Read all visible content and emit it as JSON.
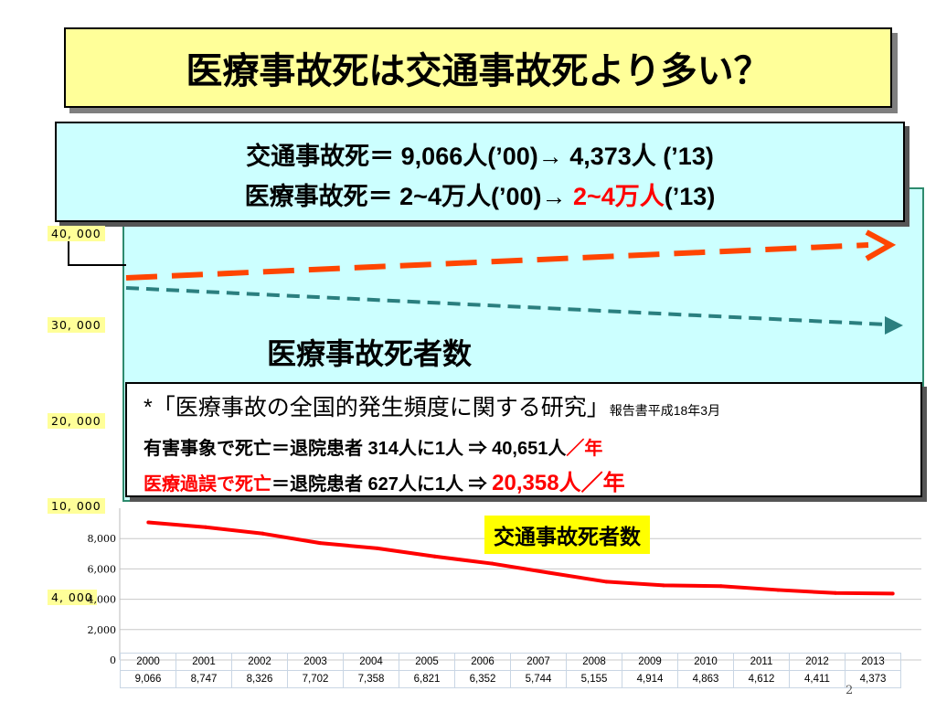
{
  "title": "医療事故死は交通事故死より多い？",
  "summary": {
    "line1": "交通事故死＝  9,066人(’00)→  4,373人 (’13)",
    "line2_prefix": "医療事故死＝ 2~4万人(’00)→ ",
    "line2_highlight": "2~4万人",
    "line2_suffix": "(’13)"
  },
  "y_labels": {
    "label_40000": "40, 000",
    "label_30000": "30, 000",
    "label_20000": "20, 000",
    "label_10000": "10, 000",
    "label_4000": "4, 000"
  },
  "medical_label": "医療事故死者数",
  "note": {
    "line1_main": "*「医療事故の全国的発生頻度に関する研究」",
    "line1_small": "報告書平成18年3月",
    "line2_main": "有害事象で死亡＝退院患者 314人に1人  ⇒  40,651人",
    "line2_red": "／年",
    "line3_red": "医療過誤で死亡",
    "line3_main": "＝退院患者 627人に1人  ⇒  ",
    "line3_value": "20,358人／年"
  },
  "traffic_label": "交通事故死者数",
  "page_number": "2",
  "colors": {
    "traffic_line": "#ff0000",
    "medical_2013_dash": "#ff4500",
    "medical_2000_dash": "#2a7f7f",
    "label_yellow": "#ffff99",
    "panel_cyan": "#ccffff"
  },
  "chart_data": {
    "type": "line",
    "x": [
      "2000",
      "2001",
      "2002",
      "2003",
      "2004",
      "2005",
      "2006",
      "2007",
      "2008",
      "2009",
      "2010",
      "2011",
      "2012",
      "2013"
    ],
    "series": [
      {
        "values": [
          9066,
          8747,
          8326,
          7702,
          7358,
          6821,
          6352,
          5744,
          5155,
          4914,
          4863,
          4612,
          4411,
          4373
        ]
      }
    ],
    "value_labels": [
      "9,066",
      "8,747",
      "8,326",
      "7,702",
      "7,358",
      "6,821",
      "6,352",
      "5,744",
      "5,155",
      "4,914",
      "4,863",
      "4,612",
      "4,411",
      "4,373"
    ],
    "y_ticks": [
      "0",
      "2,000",
      "4,000",
      "6,000",
      "8,000"
    ],
    "ylim": [
      0,
      10000
    ],
    "grid": true
  }
}
